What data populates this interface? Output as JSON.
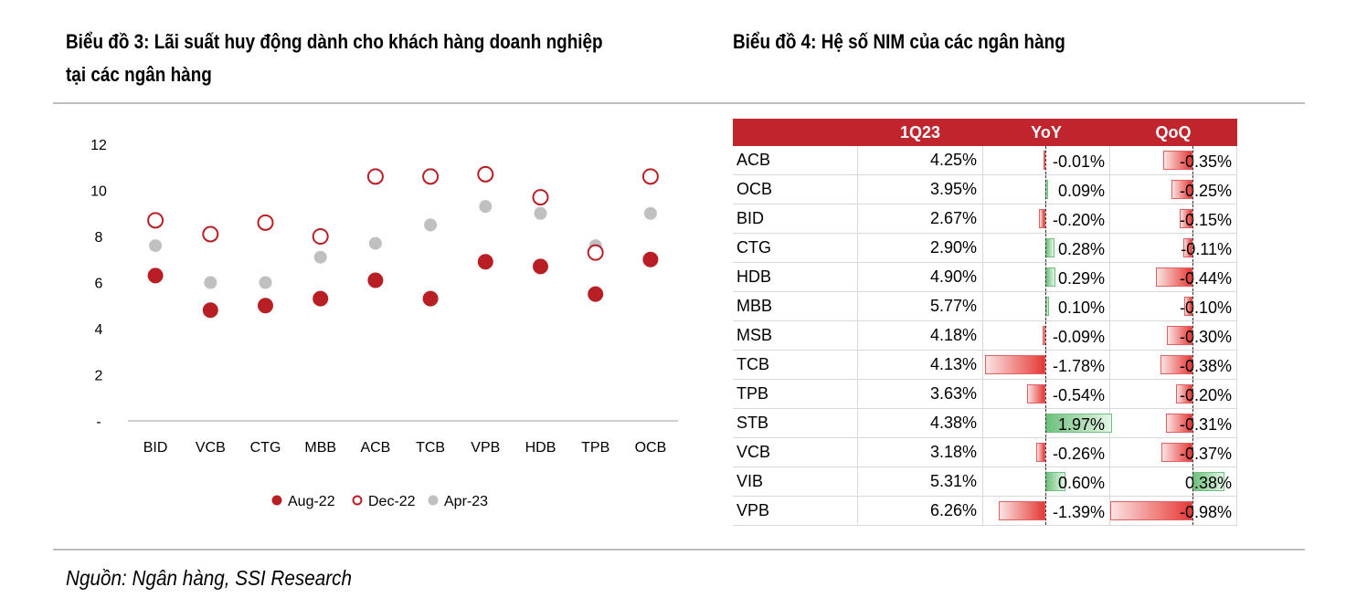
{
  "titles": {
    "chart3": "Biểu đồ 3: Lãi suất huy động dành cho khách hàng doanh nghiệp",
    "chart3_line2": "tại các ngân hàng",
    "chart4": "Biểu đồ 4: Hệ số NIM của các ngân hàng"
  },
  "source": "Nguồn: Ngân hàng, SSI Research",
  "colors": {
    "accent_red": "#c0242c",
    "grey_dot": "#bfbfbf",
    "neg_bar": "#e53935",
    "pos_bar": "#6cc07a"
  },
  "chart_data": [
    {
      "type": "scatter",
      "title": "Biểu đồ 3: Lãi suất huy động dành cho khách hàng doanh nghiệp tại các ngân hàng",
      "categories": [
        "BID",
        "VCB",
        "CTG",
        "MBB",
        "ACB",
        "TCB",
        "VPB",
        "HDB",
        "TPB",
        "OCB"
      ],
      "yticks": [
        "12",
        "10",
        "8",
        "6",
        "4",
        "2",
        "-"
      ],
      "ylim": [
        0,
        12
      ],
      "legend_position": "bottom",
      "series": [
        {
          "name": "Aug-22",
          "marker": "filled-red",
          "values": [
            6.3,
            4.8,
            5.0,
            5.3,
            6.1,
            5.3,
            6.9,
            6.7,
            5.5,
            7.0
          ]
        },
        {
          "name": "Dec-22",
          "marker": "open-red",
          "values": [
            8.7,
            8.1,
            8.6,
            8.0,
            10.6,
            10.6,
            10.7,
            9.7,
            7.3,
            10.6
          ]
        },
        {
          "name": "Apr-23",
          "marker": "filled-grey",
          "values": [
            7.6,
            6.0,
            6.0,
            7.1,
            7.7,
            8.5,
            9.3,
            9.0,
            7.6,
            9.0
          ]
        }
      ]
    },
    {
      "type": "table",
      "title": "Biểu đồ 4: Hệ số NIM của các ngân hàng",
      "columns": [
        "",
        "1Q23",
        "YoY",
        "QoQ"
      ],
      "rows": [
        {
          "bank": "ACB",
          "q": "4.25%",
          "yoy": -0.01,
          "yoy_text": "-0.01%",
          "qoq": -0.35,
          "qoq_text": "-0.35%"
        },
        {
          "bank": "OCB",
          "q": "3.95%",
          "yoy": 0.09,
          "yoy_text": "0.09%",
          "qoq": -0.25,
          "qoq_text": "-0.25%"
        },
        {
          "bank": "BID",
          "q": "2.67%",
          "yoy": -0.2,
          "yoy_text": "-0.20%",
          "qoq": -0.15,
          "qoq_text": "-0.15%"
        },
        {
          "bank": "CTG",
          "q": "2.90%",
          "yoy": 0.28,
          "yoy_text": "0.28%",
          "qoq": -0.11,
          "qoq_text": "-0.11%"
        },
        {
          "bank": "HDB",
          "q": "4.90%",
          "yoy": 0.29,
          "yoy_text": "0.29%",
          "qoq": -0.44,
          "qoq_text": "-0.44%"
        },
        {
          "bank": "MBB",
          "q": "5.77%",
          "yoy": 0.1,
          "yoy_text": "0.10%",
          "qoq": -0.1,
          "qoq_text": "-0.10%"
        },
        {
          "bank": "MSB",
          "q": "4.18%",
          "yoy": -0.09,
          "yoy_text": "-0.09%",
          "qoq": -0.3,
          "qoq_text": "-0.30%"
        },
        {
          "bank": "TCB",
          "q": "4.13%",
          "yoy": -1.78,
          "yoy_text": "-1.78%",
          "qoq": -0.38,
          "qoq_text": "-0.38%"
        },
        {
          "bank": "TPB",
          "q": "3.63%",
          "yoy": -0.54,
          "yoy_text": "-0.54%",
          "qoq": -0.2,
          "qoq_text": "-0.20%"
        },
        {
          "bank": "STB",
          "q": "4.38%",
          "yoy": 1.97,
          "yoy_text": "1.97%",
          "qoq": -0.31,
          "qoq_text": "-0.31%"
        },
        {
          "bank": "VCB",
          "q": "3.18%",
          "yoy": -0.26,
          "yoy_text": "-0.26%",
          "qoq": -0.37,
          "qoq_text": "-0.37%"
        },
        {
          "bank": "VIB",
          "q": "5.31%",
          "yoy": 0.6,
          "yoy_text": "0.60%",
          "qoq": 0.38,
          "qoq_text": "0.38%"
        },
        {
          "bank": "VPB",
          "q": "6.26%",
          "yoy": -1.39,
          "yoy_text": "-1.39%",
          "qoq": -0.98,
          "qoq_text": "-0.98%"
        }
      ]
    }
  ]
}
